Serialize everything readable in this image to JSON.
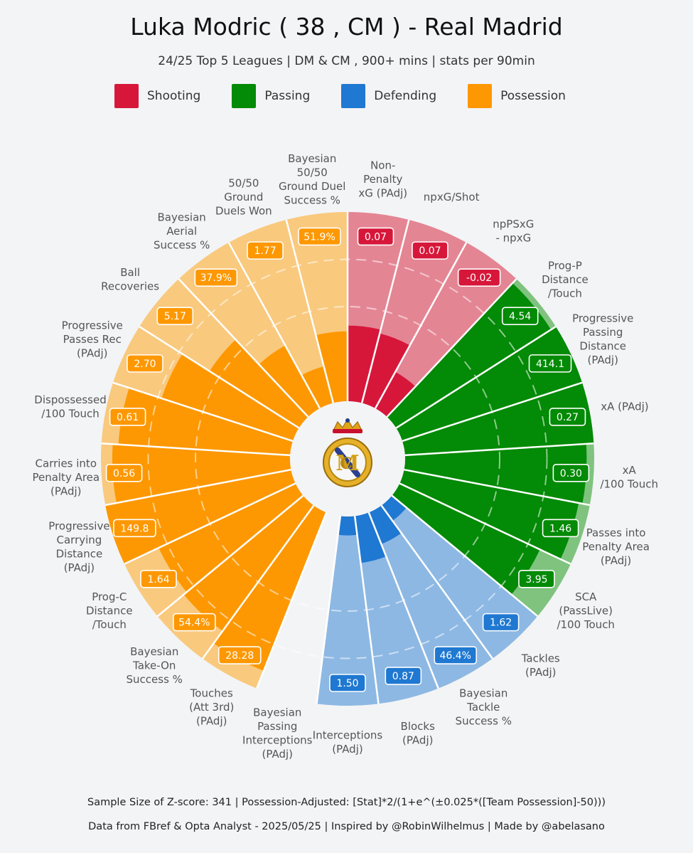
{
  "header": {
    "title": "Luka Modric  ( 38 , CM ) - Real Madrid",
    "subtitle": "24/25 Top 5 Leagues | DM & CM , 900+ mins | stats per 90min"
  },
  "legend": [
    {
      "label": "Shooting",
      "color": "#d7173a"
    },
    {
      "label": "Passing",
      "color": "#038a06"
    },
    {
      "label": "Defending",
      "color": "#1f78d1"
    },
    {
      "label": "Possession",
      "color": "#fd9802"
    }
  ],
  "footer": {
    "line1": "Sample Size of Z-score:  341  |  Possession-Adjusted: [Stat]*2/(1+e^(±0.025*([Team Possession]-50)))",
    "line2": "Data from  FBref & Opta Analyst  - 2025/05/25  |  Inspired by @RobinWilhelmus  |  Made by @abelasano"
  },
  "chart_data": {
    "type": "radial-bar",
    "scale_note": "bar length = percentile (0-100)",
    "categories": [
      {
        "name": "Shooting",
        "color": "#d7173a",
        "light": "#e48594"
      },
      {
        "name": "Passing",
        "color": "#038a06",
        "light": "#7fc37f"
      },
      {
        "name": "Defending",
        "color": "#1f78d1",
        "light": "#8db8e3"
      },
      {
        "name": "Possession",
        "color": "#fd9802",
        "light": "#f9c97e"
      }
    ],
    "metrics": [
      {
        "label": "Non-\nPenalty\nxG (PAdj)",
        "value": "0.07",
        "percentile": 40,
        "category": "Shooting"
      },
      {
        "label": "npxG/Shot",
        "value": "0.07",
        "percentile": 38,
        "category": "Shooting"
      },
      {
        "label": "npPSxG\n- npxG",
        "value": "-0.02",
        "percentile": 22,
        "category": "Shooting"
      },
      {
        "label": "Prog-P\nDistance\n/Touch",
        "value": "4.54",
        "percentile": 97,
        "category": "Passing"
      },
      {
        "label": "Progressive\nPassing\nDistance\n(PAdj)",
        "value": "414.1",
        "percentile": 100,
        "category": "Passing"
      },
      {
        "label": "xA (PAdj)",
        "value": "0.27",
        "percentile": 100,
        "category": "Passing"
      },
      {
        "label": "xA\n/100 Touch",
        "value": "0.30",
        "percentile": 96,
        "category": "Passing"
      },
      {
        "label": "Passes into\nPenalty Area\n(PAdj)",
        "value": "1.46",
        "percentile": 94,
        "category": "Passing"
      },
      {
        "label": "SCA\n(PassLive)\n/100 Touch",
        "value": "3.95",
        "percentile": 82,
        "category": "Passing"
      },
      {
        "label": "Tackles\n(PAdj)",
        "value": "1.62",
        "percentile": 10,
        "category": "Defending"
      },
      {
        "label": "Bayesian\nTackle\nSuccess %",
        "value": "46.4%",
        "percentile": 18,
        "category": "Defending"
      },
      {
        "label": "Blocks\n(PAdj)",
        "value": "0.87",
        "percentile": 25,
        "category": "Defending"
      },
      {
        "label": "Interceptions\n(PAdj)",
        "value": "1.50",
        "percentile": 10,
        "category": "Defending"
      },
      {
        "label": "Bayesian\nPassing\nInterceptions\n(PAdj)",
        "value": "",
        "percentile": 0,
        "category": "hidden"
      },
      {
        "label": "Touches\n(Att 3rd)\n(PAdj)",
        "value": "28.28",
        "percentile": 90,
        "category": "Possession"
      },
      {
        "label": "Bayesian\nTake-On\nSuccess %",
        "value": "54.4%",
        "percentile": 82,
        "category": "Possession"
      },
      {
        "label": "Prog-C\nDistance\n/Touch",
        "value": "1.64",
        "percentile": 80,
        "category": "Possession"
      },
      {
        "label": "Progressive\nCarrying\nDistance\n(PAdj)",
        "value": "149.8",
        "percentile": 100,
        "category": "Possession"
      },
      {
        "label": "Carries into\nPenalty Area\n(PAdj)",
        "value": "0.56",
        "percentile": 94,
        "category": "Possession"
      },
      {
        "label": "Dispossessed\n/100 Touch",
        "value": "0.61",
        "percentile": 91,
        "category": "Possession"
      },
      {
        "label": "Progressive\nPasses Rec\n(PAdj)",
        "value": "2.70",
        "percentile": 73,
        "category": "Possession"
      },
      {
        "label": "Ball\nRecoveries",
        "value": "5.17",
        "percentile": 56,
        "category": "Possession"
      },
      {
        "label": "Bayesian\nAerial\nSuccess %",
        "value": "37.9%",
        "percentile": 38,
        "category": "Possession"
      },
      {
        "label": "50/50\nGround\nDuels Won",
        "value": "1.77",
        "percentile": 20,
        "category": "Possession"
      },
      {
        "label": "Bayesian\n50/50\nGround Duel\nSuccess %",
        "value": "51.9%",
        "percentile": 37,
        "category": "Possession"
      }
    ]
  }
}
